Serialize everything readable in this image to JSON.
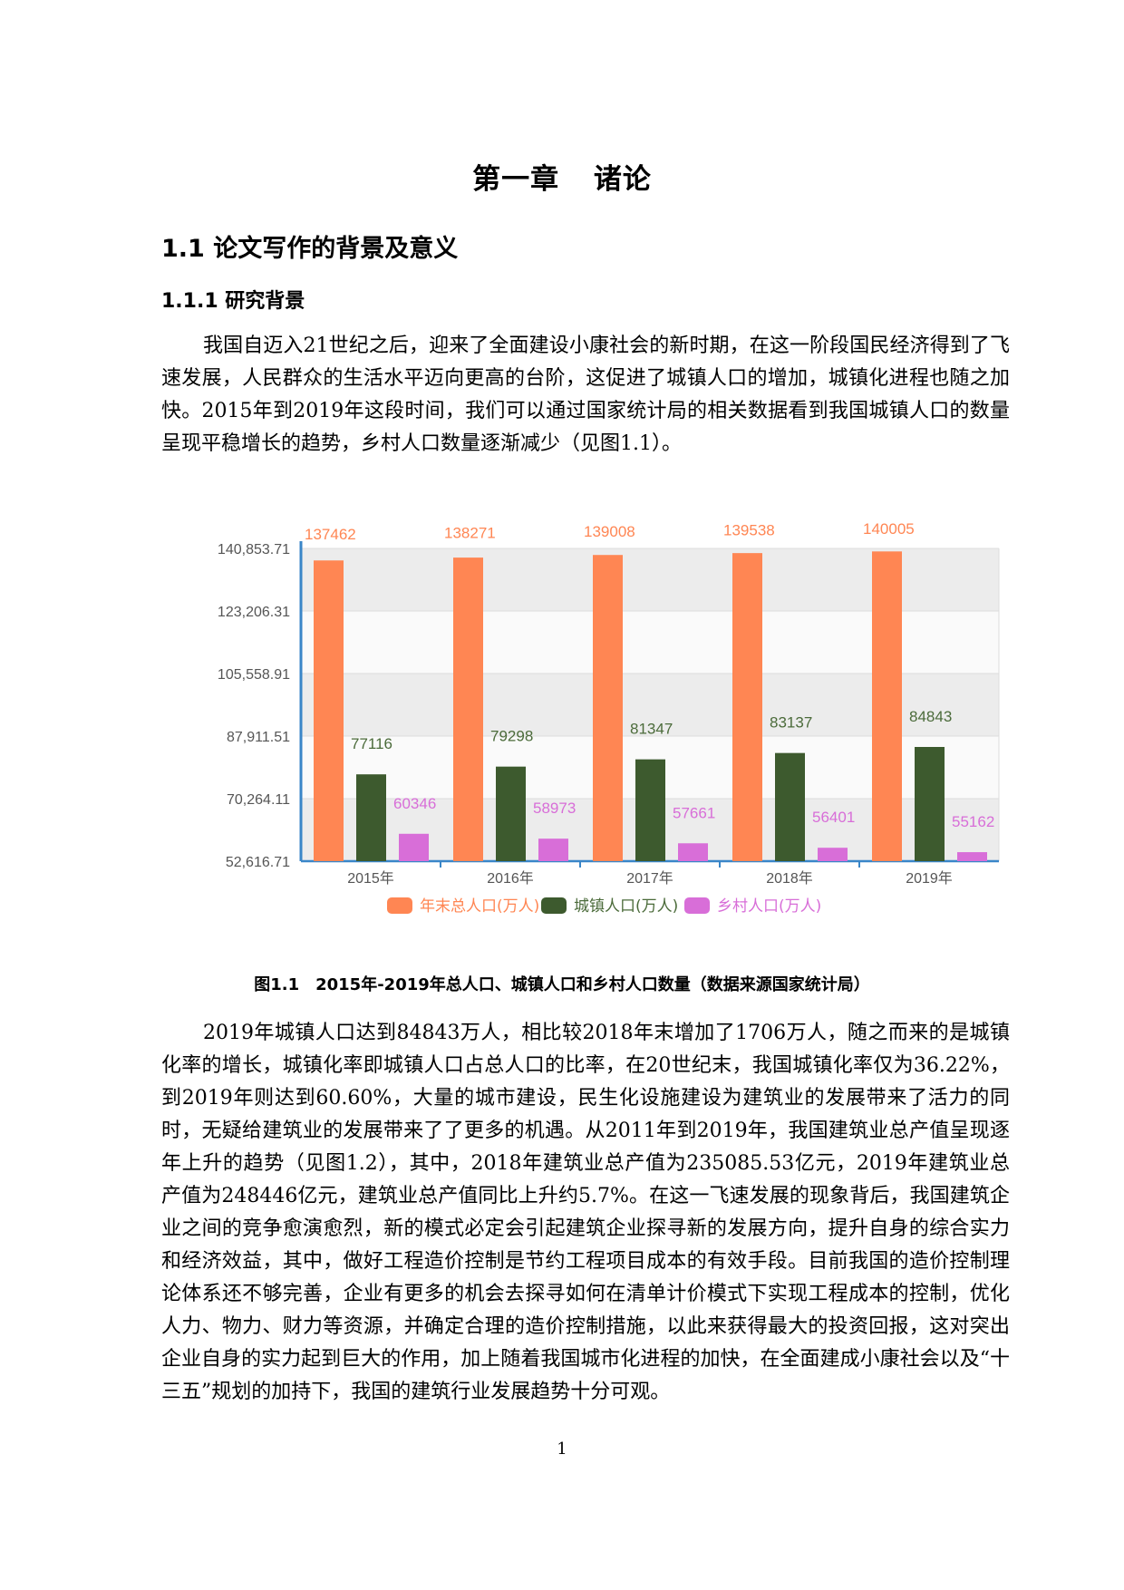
{
  "doc": {
    "chapter_title": "第一章 诸论",
    "section_title": "1.1 论文写作的背景及意义",
    "subsection_title": "1.1.1 研究背景",
    "paragraph1": "我国自迈入21世纪之后，迎来了全面建设小康社会的新时期，在这一阶段国民经济得到了飞速发展，人民群众的生活水平迈向更高的台阶，这促进了城镇人口的增加，城镇化进程也随之加快。2015年到2019年这段时间，我们可以通过国家统计局的相关数据看到我国城镇人口的数量呈现平稳增长的趋势，乡村人口数量逐渐减少（见图1.1）。",
    "figure_caption": "图1.1　2015年-2019年总人口、城镇人口和乡村人口数量（数据来源国家统计局）",
    "paragraph2": "2019年城镇人口达到84843万人，相比较2018年末增加了1706万人，随之而来的是城镇化率的增长，城镇化率即城镇人口占总人口的比率，在20世纪末，我国城镇化率仅为36.22%，到2019年则达到60.60%，大量的城市建设，民生化设施建设为建筑业的发展带来了活力的同时，无疑给建筑业的发展带来了了更多的机遇。从2011年到2019年，我国建筑业总产值呈现逐年上升的趋势（见图1.2），其中，2018年建筑业总产值为235085.53亿元，2019年建筑业总产值为248446亿元，建筑业总产值同比上升约5.7%。在这一飞速发展的现象背后，我国建筑企业之间的竞争愈演愈烈，新的模式必定会引起建筑企业探寻新的发展方向，提升自身的综合实力和经济效益，其中，做好工程造价控制是节约工程项目成本的有效手段。目前我国的造价控制理论体系还不够完善，企业有更多的机会去探寻如何在清单计价模式下实现工程成本的控制，优化人力、物力、财力等资源，并确定合理的造价控制措施，以此来获得最大的投资回报，这对突出企业自身的实力起到巨大的作用，加上随着我国城市化进程的加快，在全面建成小康社会以及“十三五”规划的加持下，我国的建筑行业发展趋势十分可观。",
    "page_number": "1"
  },
  "chart_data": {
    "type": "bar",
    "categories": [
      "2015年",
      "2016年",
      "2017年",
      "2018年",
      "2019年"
    ],
    "y_ticks": [
      "52,616.71",
      "70,264.11",
      "87,911.51",
      "105,558.91",
      "123,206.31",
      "140,853.71"
    ],
    "ylim": [
      52616.71,
      140853.71
    ],
    "grid": true,
    "legend_position": "bottom",
    "series": [
      {
        "name": "年末总人口(万人)",
        "color": "#ff8653",
        "values": [
          137462,
          138271,
          139008,
          139538,
          140005
        ]
      },
      {
        "name": "城镇人口(万人)",
        "color": "#3d5a2e",
        "values": [
          77116,
          79298,
          81347,
          83137,
          84843
        ]
      },
      {
        "name": "乡村人口(万人)",
        "color": "#d86ed8",
        "values": [
          60346,
          58973,
          57661,
          56401,
          55162
        ]
      }
    ],
    "label_colors": [
      "#ff8653",
      "#4b6b3a",
      "#d86ed8"
    ],
    "axis_color": "#3a86c8"
  }
}
